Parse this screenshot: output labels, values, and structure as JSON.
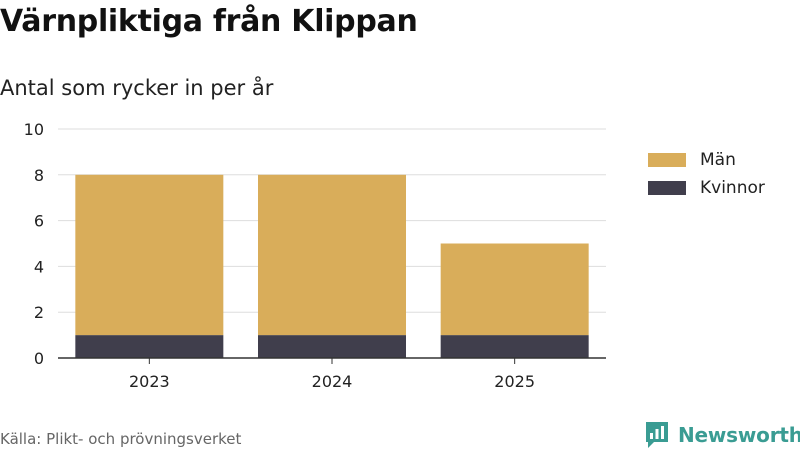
{
  "header": {
    "title": "Värnpliktiga från Klippan",
    "subtitle": "Antal som rycker in per år"
  },
  "footer": {
    "source": "Källa: Plikt- och prövningsverket",
    "brand": "Newsworthy"
  },
  "colors": {
    "man": "#d9ad5a",
    "kvinnor": "#403e4c",
    "grid": "#dddddd",
    "axis": "#333333",
    "brand": "#3a9c93"
  },
  "chart_data": {
    "type": "bar",
    "stacked": true,
    "title": "Värnpliktiga från Klippan",
    "subtitle": "Antal som rycker in per år",
    "categories": [
      "2023",
      "2024",
      "2025"
    ],
    "series": [
      {
        "name": "Kvinnor",
        "values": [
          1,
          1,
          1
        ]
      },
      {
        "name": "Män",
        "values": [
          7,
          7,
          4
        ]
      }
    ],
    "ylim": [
      0,
      10
    ],
    "yticks": [
      0,
      2,
      4,
      6,
      8,
      10
    ],
    "xlabel": "",
    "ylabel": "",
    "grid": true,
    "legend": {
      "position": "right",
      "order": [
        "Män",
        "Kvinnor"
      ]
    }
  }
}
